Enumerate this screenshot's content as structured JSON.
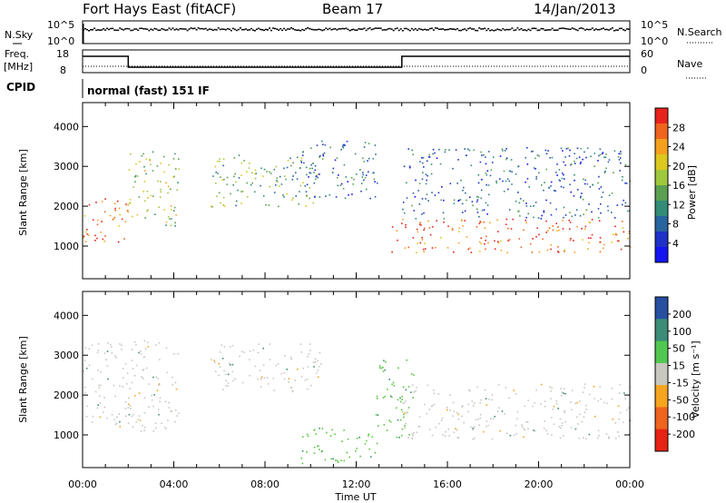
{
  "header": {
    "station": "Fort Hays East (fitACF)",
    "beam": "Beam 17",
    "date": "14/Jan/2013"
  },
  "noise_panel": {
    "left_label": "N.Sky",
    "right_label": "N.Search",
    "left_ticks": [
      "10^5",
      "10^0"
    ],
    "right_ticks": [
      "10^5",
      "10^0"
    ]
  },
  "freq_panel": {
    "left_label_1": "Freq.",
    "left_label_2": "[MHz]",
    "right_label": "Nave",
    "left_ticks": [
      "18",
      "8"
    ],
    "right_ticks": [
      "60",
      "0"
    ],
    "freq_steps": [
      {
        "start_h": 0,
        "end_h": 2,
        "value": "high"
      },
      {
        "start_h": 2,
        "end_h": 14,
        "value": "low"
      },
      {
        "start_h": 14,
        "end_h": 24,
        "value": "high"
      }
    ]
  },
  "cpid": {
    "label": "CPID",
    "value": "normal (fast) 151 IF"
  },
  "power_panel": {
    "ylabel": "Slant Range [km]",
    "yticks": [
      "1000",
      "2000",
      "3000",
      "4000"
    ],
    "colorbar_label": "Power [dB]",
    "colorbar_ticks": [
      "28",
      "24",
      "20",
      "16",
      "12",
      "8",
      "4"
    ],
    "colors": [
      "#e8231e",
      "#f0641e",
      "#f5a01e",
      "#dcc81e",
      "#a0c83c",
      "#5aa050",
      "#328c78",
      "#2864a0",
      "#1e32c8",
      "#1414f0"
    ]
  },
  "velocity_panel": {
    "ylabel": "Slant Range [km]",
    "yticks": [
      "1000",
      "2000",
      "3000",
      "4000"
    ],
    "colorbar_label": "Velocity [m s⁻¹]",
    "colorbar_ticks": [
      "200",
      "100",
      "50",
      "15",
      "-15",
      "-50",
      "-100",
      "-200"
    ],
    "colors": [
      "#2850a0",
      "#3c8c78",
      "#50c850",
      "#c8c8be",
      "#f5a51e",
      "#f0641e",
      "#e62314"
    ]
  },
  "x_axis": {
    "label": "Time UT",
    "ticks": [
      "00:00",
      "04:00",
      "08:00",
      "12:00",
      "16:00",
      "20:00",
      "00:00"
    ]
  },
  "chart_data": {
    "type": "heatmap",
    "title": "Fort Hays East (fitACF)",
    "xlabel": "Time UT",
    "ylabel": "Slant Range [km]",
    "xlim": [
      "00:00",
      "24:00"
    ],
    "ylim": [
      180,
      4600
    ],
    "power_db_range": [
      0,
      30
    ],
    "velocity_range": [
      -250,
      250
    ],
    "power_echo_regions": [
      {
        "t_start": 0.0,
        "t_end": 2.0,
        "range_lo": 1100,
        "range_hi": 2300,
        "power_db": 26
      },
      {
        "t_start": 2.0,
        "t_end": 4.2,
        "range_lo": 1500,
        "range_hi": 3400,
        "power_db": 18
      },
      {
        "t_start": 5.6,
        "t_end": 10.5,
        "range_lo": 2000,
        "range_hi": 3300,
        "power_db": 14
      },
      {
        "t_start": 9.5,
        "t_end": 13.0,
        "range_lo": 2200,
        "range_hi": 3700,
        "power_db": 10
      },
      {
        "t_start": 13.5,
        "t_end": 24.0,
        "range_lo": 850,
        "range_hi": 1700,
        "power_db": 27
      },
      {
        "t_start": 14.0,
        "t_end": 24.0,
        "range_lo": 1700,
        "range_hi": 3500,
        "power_db": 10
      }
    ],
    "velocity_echo_regions": [
      {
        "t_start": 0.0,
        "t_end": 4.2,
        "range_lo": 1100,
        "range_hi": 3400,
        "velocity": 0
      },
      {
        "t_start": 5.6,
        "t_end": 10.5,
        "range_lo": 2100,
        "range_hi": 3300,
        "velocity": 0
      },
      {
        "t_start": 12.8,
        "t_end": 14.5,
        "range_lo": 900,
        "range_hi": 2900,
        "velocity": 40
      },
      {
        "t_start": 14.0,
        "t_end": 24.0,
        "range_lo": 900,
        "range_hi": 2300,
        "velocity": 0
      },
      {
        "t_start": 9.5,
        "t_end": 13.0,
        "range_lo": 300,
        "range_hi": 1200,
        "velocity": 40
      }
    ]
  }
}
